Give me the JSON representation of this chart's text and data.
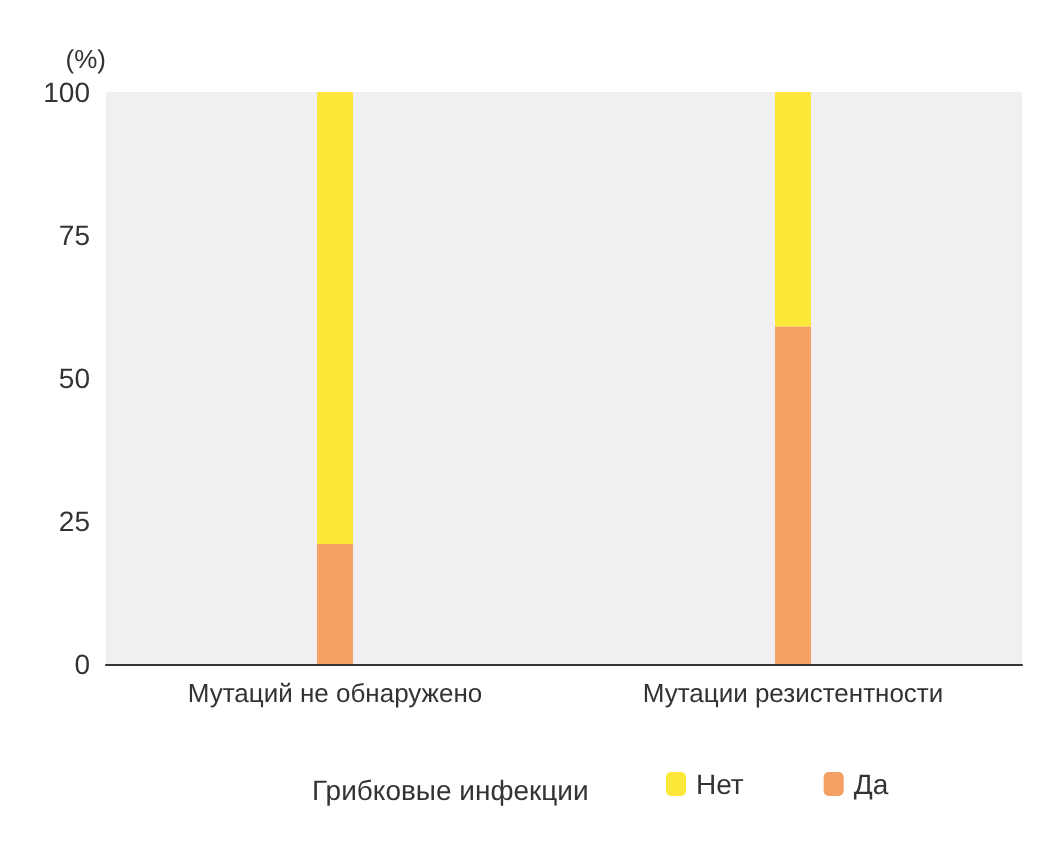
{
  "chart_data": {
    "type": "bar",
    "stacked": true,
    "ylabel": "(%)",
    "legend_title": "Грибковые инфекции",
    "categories": [
      "Мутаций не обнаружено",
      "Мутации резистентности"
    ],
    "series": [
      {
        "name": "Да",
        "color": "#f4a064",
        "values": [
          21,
          59
        ]
      },
      {
        "name": "Нет",
        "color": "#fde83a",
        "values": [
          79,
          41
        ]
      }
    ],
    "ylim": [
      0,
      100
    ],
    "yticks": [
      0,
      25,
      50,
      75,
      100
    ],
    "grid": false,
    "legend": "bottom"
  }
}
